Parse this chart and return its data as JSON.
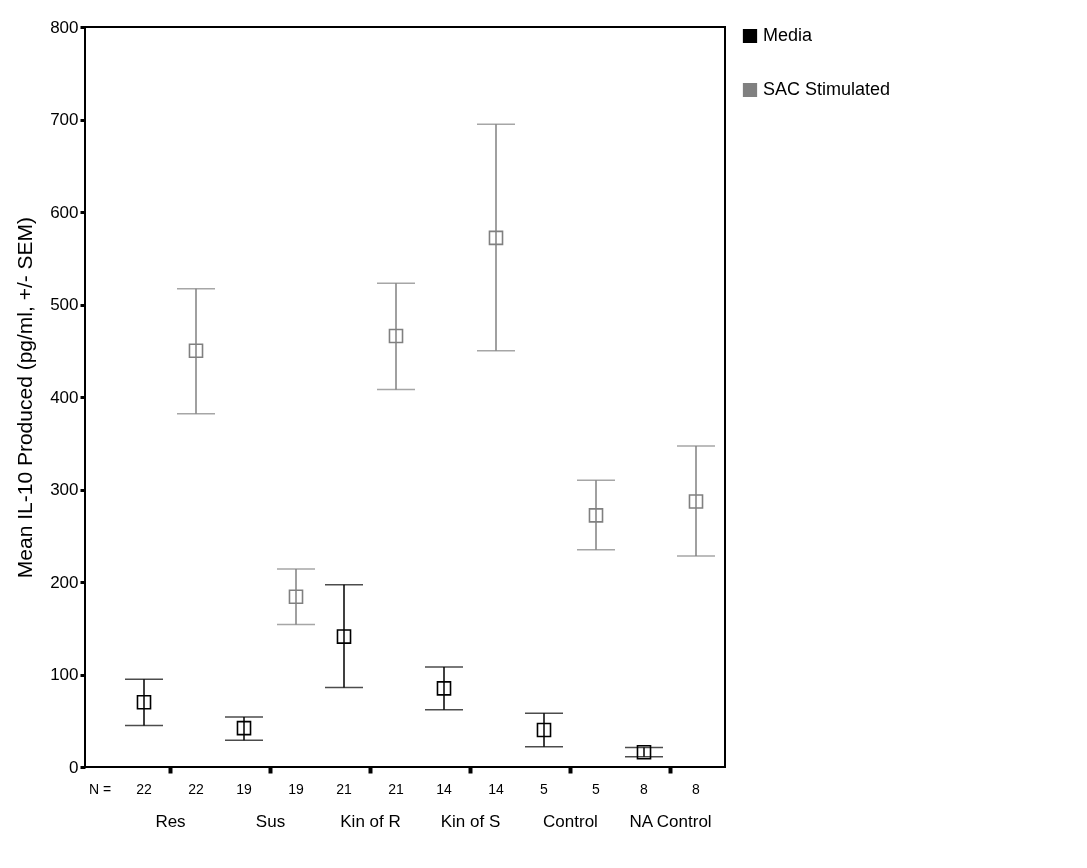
{
  "chart_data": {
    "type": "scatter",
    "ylabel": "Mean IL-10 Produced (pg/ml, +/- SEM)",
    "categories": [
      "Res",
      "Sus",
      "Kin of R",
      "Kin of S",
      "Control",
      "NA Control"
    ],
    "series": [
      {
        "name": "Media",
        "color": "#000000",
        "values": [
          70,
          42,
          141,
          85,
          40,
          16
        ],
        "errors": [
          [
            45,
            95
          ],
          [
            29,
            54
          ],
          [
            86,
            197
          ],
          [
            62,
            108
          ],
          [
            22,
            58
          ],
          [
            11,
            21
          ]
        ]
      },
      {
        "name": "SAC Stimulated",
        "color": "#808080",
        "values": [
          450,
          184,
          466,
          572,
          272,
          287
        ],
        "errors": [
          [
            382,
            517
          ],
          [
            154,
            214
          ],
          [
            408,
            523
          ],
          [
            450,
            695
          ],
          [
            235,
            310
          ],
          [
            228,
            347
          ]
        ]
      }
    ],
    "ylim": [
      0,
      800
    ],
    "yticks": [
      0,
      100,
      200,
      300,
      400,
      500,
      600,
      700,
      800
    ],
    "marker": "square",
    "legend": "right",
    "annotations": [
      "N =",
      "22",
      "22",
      "19",
      "19",
      "21",
      "21",
      "14",
      "14",
      "5",
      "5",
      "8",
      "8"
    ]
  }
}
